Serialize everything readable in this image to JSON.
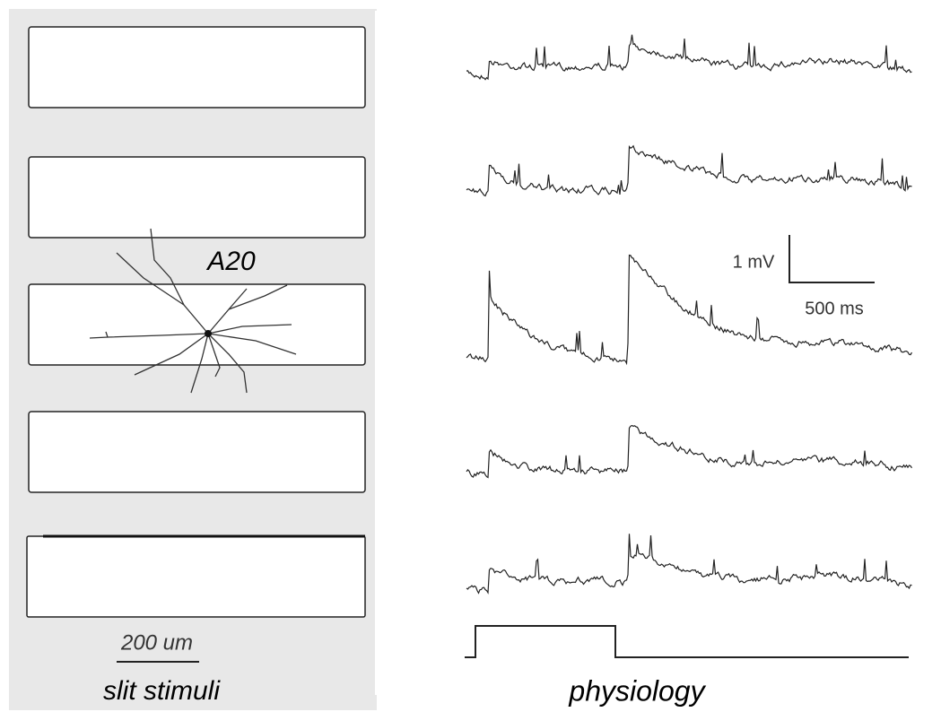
{
  "labels": {
    "cell": "A20",
    "scale_voltage": "1 mV",
    "scale_time": "500 ms",
    "scale_length": "200 um",
    "left_caption": "slit stimuli",
    "right_caption": "physiology"
  }
}
